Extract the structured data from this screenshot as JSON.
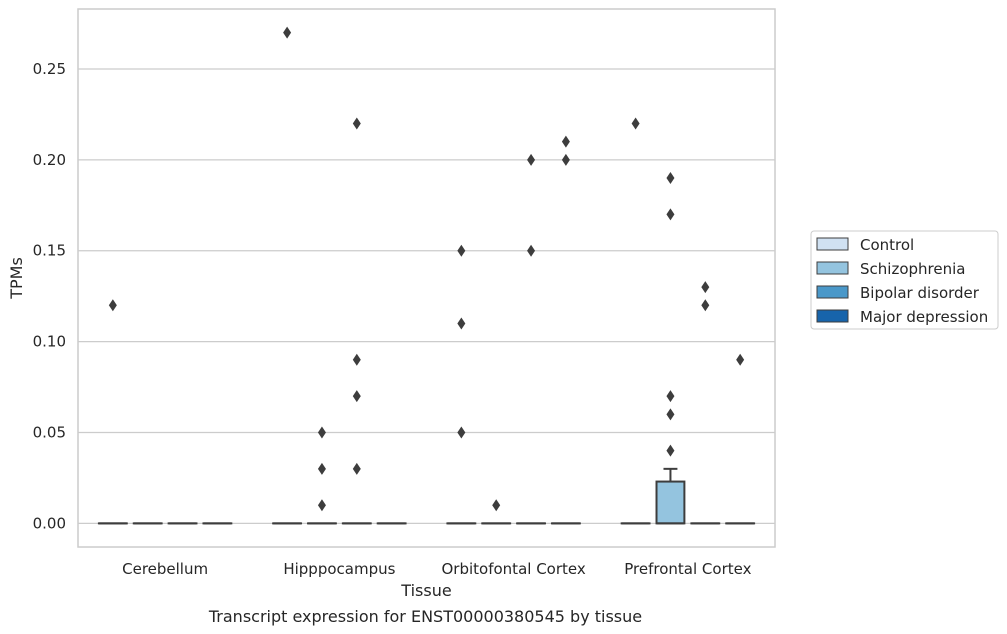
{
  "chart_data": {
    "type": "box",
    "caption": "Transcript expression for ENST00000380545 by tissue",
    "xlabel": "Tissue",
    "ylabel": "TPMs",
    "ylim": [
      -0.013,
      0.283
    ],
    "yticks": [
      0.0,
      0.05,
      0.1,
      0.15,
      0.2,
      0.25
    ],
    "ytick_labels": [
      "0.00",
      "0.05",
      "0.10",
      "0.15",
      "0.20",
      "0.25"
    ],
    "grid": true,
    "legend_position": "right",
    "categories": [
      "Cerebellum",
      "Hipppocampus",
      "Orbitofontal Cortex",
      "Prefrontal Cortex"
    ],
    "series": [
      {
        "name": "Control",
        "color": "#d0e1f2",
        "boxes": [
          {
            "q1": 0,
            "median": 0,
            "q3": 0,
            "whisker_low": 0,
            "whisker_high": 0,
            "outliers": [
              0.12
            ]
          },
          {
            "q1": 0,
            "median": 0,
            "q3": 0,
            "whisker_low": 0,
            "whisker_high": 0,
            "outliers": [
              0.27
            ]
          },
          {
            "q1": 0,
            "median": 0,
            "q3": 0,
            "whisker_low": 0,
            "whisker_high": 0,
            "outliers": [
              0.15,
              0.11,
              0.05
            ]
          },
          {
            "q1": 0,
            "median": 0,
            "q3": 0,
            "whisker_low": 0,
            "whisker_high": 0,
            "outliers": [
              0.22
            ]
          }
        ]
      },
      {
        "name": "Schizophrenia",
        "color": "#94c4df",
        "boxes": [
          {
            "q1": 0,
            "median": 0,
            "q3": 0,
            "whisker_low": 0,
            "whisker_high": 0,
            "outliers": []
          },
          {
            "q1": 0,
            "median": 0,
            "q3": 0,
            "whisker_low": 0,
            "whisker_high": 0,
            "outliers": [
              0.05,
              0.03,
              0.01
            ]
          },
          {
            "q1": 0,
            "median": 0,
            "q3": 0,
            "whisker_low": 0,
            "whisker_high": 0,
            "outliers": [
              0.01
            ]
          },
          {
            "q1": 0,
            "median": 0,
            "q3": 0.023,
            "whisker_low": 0,
            "whisker_high": 0.03,
            "outliers": [
              0.19,
              0.17,
              0.07,
              0.06,
              0.04
            ]
          }
        ]
      },
      {
        "name": "Bipolar disorder",
        "color": "#4a98c9",
        "boxes": [
          {
            "q1": 0,
            "median": 0,
            "q3": 0,
            "whisker_low": 0,
            "whisker_high": 0,
            "outliers": []
          },
          {
            "q1": 0,
            "median": 0,
            "q3": 0,
            "whisker_low": 0,
            "whisker_high": 0,
            "outliers": [
              0.22,
              0.09,
              0.07,
              0.03
            ]
          },
          {
            "q1": 0,
            "median": 0,
            "q3": 0,
            "whisker_low": 0,
            "whisker_high": 0,
            "outliers": [
              0.2,
              0.15
            ]
          },
          {
            "q1": 0,
            "median": 0,
            "q3": 0,
            "whisker_low": 0,
            "whisker_high": 0,
            "outliers": [
              0.13,
              0.12
            ]
          }
        ]
      },
      {
        "name": "Major depression",
        "color": "#1764ab",
        "boxes": [
          {
            "q1": 0,
            "median": 0,
            "q3": 0,
            "whisker_low": 0,
            "whisker_high": 0,
            "outliers": []
          },
          {
            "q1": 0,
            "median": 0,
            "q3": 0,
            "whisker_low": 0,
            "whisker_high": 0,
            "outliers": []
          },
          {
            "q1": 0,
            "median": 0,
            "q3": 0,
            "whisker_low": 0,
            "whisker_high": 0,
            "outliers": [
              0.21,
              0.2
            ]
          },
          {
            "q1": 0,
            "median": 0,
            "q3": 0,
            "whisker_low": 0,
            "whisker_high": 0,
            "outliers": [
              0.09
            ]
          }
        ]
      }
    ]
  }
}
